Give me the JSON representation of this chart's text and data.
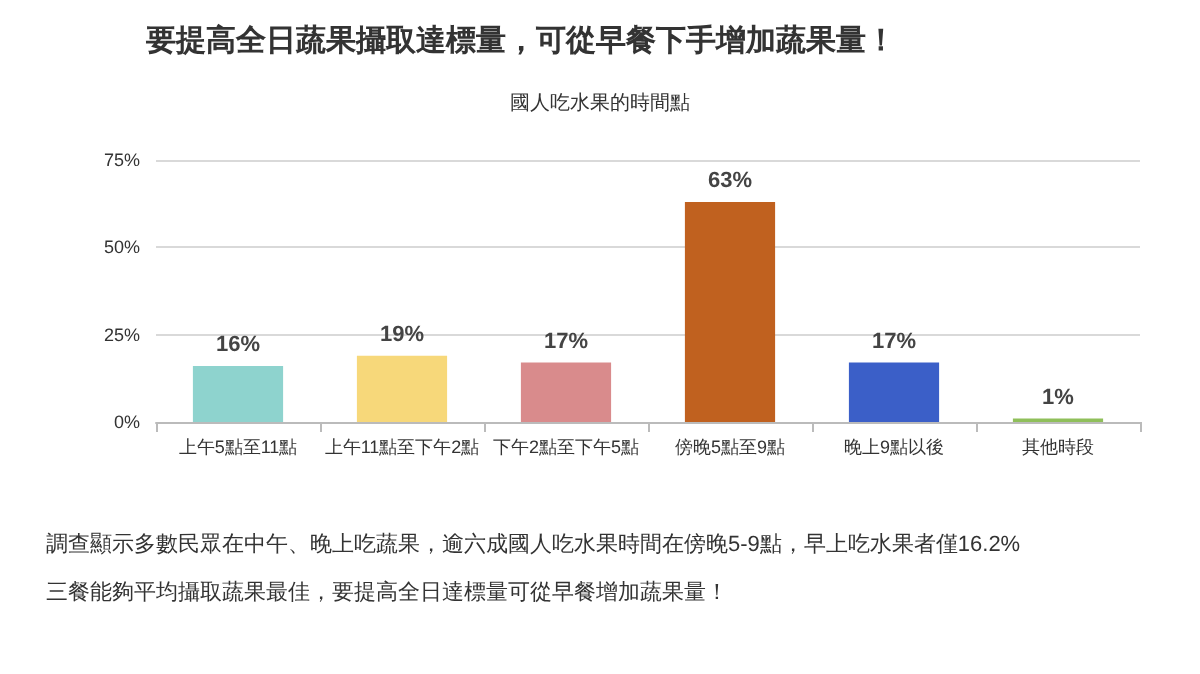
{
  "chart_data": {
    "type": "bar",
    "title": "要提高全日蔬果攝取達標量，可從早餐下手增加蔬果量！",
    "subtitle": "國人吃水果的時間點",
    "categories": [
      "上午5點至11點",
      "上午11點至下午2點",
      "下午2點至下午5點",
      "傍晚5點至9點",
      "晚上9點以後",
      "其他時段"
    ],
    "values": [
      16,
      19,
      17,
      63,
      17,
      1
    ],
    "colors": [
      "#8ed3ce",
      "#f7d87a",
      "#d98b8c",
      "#c0611f",
      "#3b5fc8",
      "#8fbf5a"
    ],
    "ylim": [
      0,
      75
    ],
    "yticks": [
      {
        "value": 0,
        "label": "0%"
      },
      {
        "value": 25,
        "label": "25%"
      },
      {
        "value": 50,
        "label": "50%"
      },
      {
        "value": 75,
        "label": "75%"
      }
    ],
    "grid": "y",
    "value_labels": [
      "16%",
      "19%",
      "17%",
      "63%",
      "17%",
      "1%"
    ],
    "annotations": [
      "調查顯示多數民眾在中午、晚上吃蔬果，逾六成國人吃水果時間在傍晚5-9點，早上吃水果者僅16.2%",
      "三餐能夠平均攝取蔬果最佳，要提高全日達標量可從早餐增加蔬果量！"
    ]
  }
}
